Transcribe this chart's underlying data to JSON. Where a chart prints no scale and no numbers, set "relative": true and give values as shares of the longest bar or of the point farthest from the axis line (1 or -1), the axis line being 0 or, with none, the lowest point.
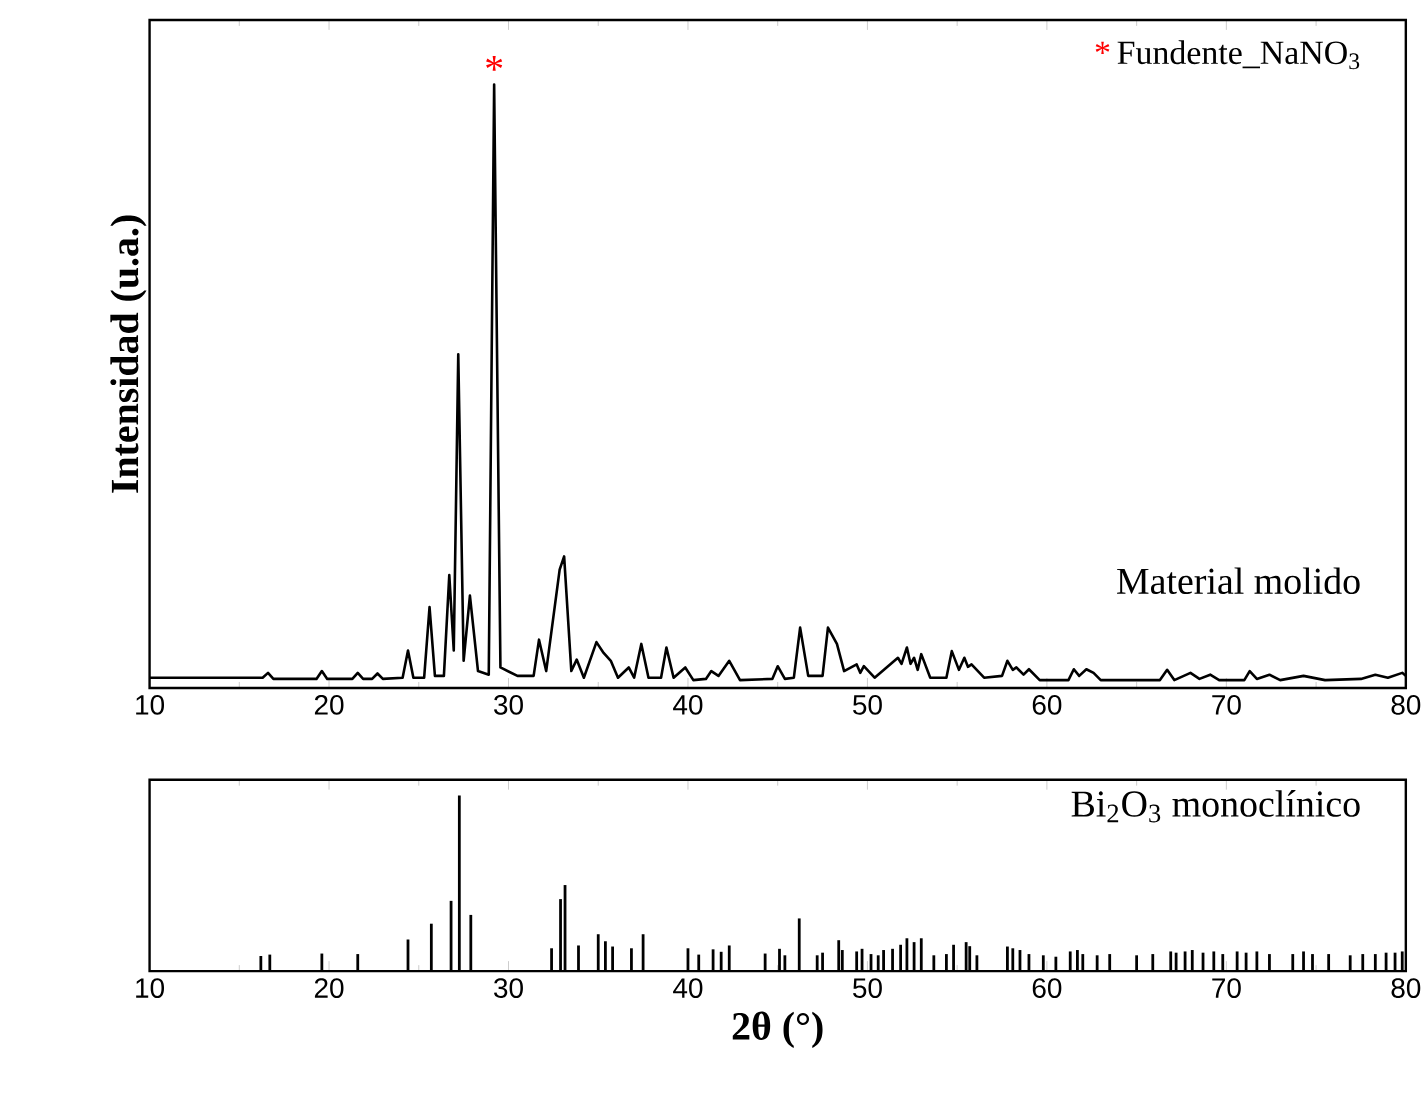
{
  "chart_data": [
    {
      "type": "line",
      "ylabel": "Intensidad (u.a.)",
      "relative": true,
      "xlim": [
        10,
        80
      ],
      "xticks": [
        10,
        20,
        30,
        40,
        50,
        60,
        70,
        80
      ],
      "tick_labels": "x",
      "annotations": [
        {
          "text": "*",
          "x": 29.2,
          "y": 1.0
        },
        "*",
        "Fundente_NaNO$_{3}$"
      ],
      "series": [
        {
          "name": "Material molido",
          "color": "#000000",
          "x": [
            10,
            16.3,
            16.6,
            16.9,
            19.3,
            19.6,
            19.9,
            21.3,
            21.6,
            21.9,
            22.4,
            22.7,
            23.0,
            24.1,
            24.4,
            24.7,
            25.3,
            25.6,
            25.9,
            26.4,
            26.7,
            26.95,
            27.2,
            27.5,
            27.85,
            28.3,
            28.9,
            29.2,
            29.55,
            30.5,
            31.4,
            31.7,
            32.1,
            32.85,
            33.1,
            33.5,
            33.8,
            34.2,
            34.9,
            35.3,
            35.7,
            36.1,
            36.7,
            37.0,
            37.4,
            37.8,
            38.5,
            38.8,
            39.2,
            39.85,
            40.3,
            41.0,
            41.3,
            41.7,
            42.3,
            42.9,
            44.7,
            45.0,
            45.4,
            45.9,
            46.25,
            46.7,
            47.5,
            47.8,
            48.3,
            48.7,
            49.4,
            49.6,
            49.8,
            50.4,
            51.7,
            51.9,
            52.2,
            52.4,
            52.6,
            52.8,
            53.0,
            53.5,
            54.4,
            54.7,
            55.1,
            55.4,
            55.6,
            55.8,
            56.5,
            57.5,
            57.8,
            58.1,
            58.3,
            58.7,
            59.0,
            59.6,
            61.2,
            61.5,
            61.8,
            62.2,
            62.6,
            63.0,
            66.3,
            66.7,
            67.1,
            68.0,
            68.5,
            69.1,
            69.6,
            71.0,
            71.3,
            71.7,
            72.4,
            73.0,
            74.3,
            75.5,
            77.5,
            78.3,
            79.0,
            79.8,
            80
          ],
          "values": [
            0.017,
            0.017,
            0.025,
            0.015,
            0.015,
            0.028,
            0.015,
            0.015,
            0.025,
            0.015,
            0.015,
            0.024,
            0.015,
            0.017,
            0.062,
            0.017,
            0.017,
            0.134,
            0.02,
            0.02,
            0.187,
            0.062,
            0.553,
            0.045,
            0.153,
            0.028,
            0.022,
            1.0,
            0.034,
            0.02,
            0.02,
            0.08,
            0.028,
            0.196,
            0.218,
            0.028,
            0.047,
            0.017,
            0.076,
            0.058,
            0.045,
            0.017,
            0.034,
            0.017,
            0.073,
            0.017,
            0.017,
            0.067,
            0.017,
            0.034,
            0.013,
            0.015,
            0.028,
            0.02,
            0.045,
            0.013,
            0.015,
            0.036,
            0.015,
            0.017,
            0.1,
            0.02,
            0.02,
            0.1,
            0.073,
            0.028,
            0.039,
            0.025,
            0.036,
            0.017,
            0.05,
            0.04,
            0.067,
            0.04,
            0.05,
            0.03,
            0.056,
            0.017,
            0.017,
            0.061,
            0.03,
            0.05,
            0.035,
            0.039,
            0.017,
            0.02,
            0.045,
            0.03,
            0.034,
            0.022,
            0.031,
            0.013,
            0.013,
            0.031,
            0.02,
            0.031,
            0.025,
            0.013,
            0.013,
            0.03,
            0.013,
            0.025,
            0.015,
            0.022,
            0.013,
            0.013,
            0.028,
            0.015,
            0.022,
            0.013,
            0.02,
            0.013,
            0.015,
            0.022,
            0.017,
            0.025,
            0.02
          ]
        }
      ]
    },
    {
      "type": "bar",
      "xlabel": "2θ  (°)",
      "relative": true,
      "xlim": [
        10,
        80
      ],
      "xticks": [
        10,
        20,
        30,
        40,
        50,
        60,
        70,
        80
      ],
      "tick_labels": "x",
      "series": [
        {
          "name": "Bi$_{2}$O$_{3}$ monoclínico",
          "color": "#000000",
          "x": [
            16.2,
            16.7,
            19.6,
            21.6,
            24.4,
            25.7,
            26.8,
            27.26,
            27.9,
            32.4,
            32.9,
            33.15,
            33.9,
            35.0,
            35.4,
            35.8,
            36.85,
            37.5,
            40.0,
            40.6,
            41.4,
            41.85,
            42.3,
            44.3,
            45.1,
            45.4,
            46.2,
            47.2,
            47.5,
            48.4,
            48.6,
            49.4,
            49.7,
            50.2,
            50.6,
            50.9,
            51.4,
            51.85,
            52.2,
            52.6,
            53.0,
            53.7,
            54.4,
            54.8,
            55.5,
            55.7,
            56.1,
            57.8,
            58.1,
            58.5,
            59.0,
            59.8,
            60.5,
            61.3,
            61.7,
            62.0,
            62.8,
            63.5,
            65.0,
            65.9,
            66.9,
            67.2,
            67.7,
            68.1,
            68.7,
            69.3,
            69.8,
            70.6,
            71.1,
            71.7,
            72.4,
            73.7,
            74.3,
            74.8,
            75.7,
            76.9,
            77.6,
            78.3,
            78.9,
            79.4,
            79.8
          ],
          "values": [
            0.086,
            0.094,
            0.1,
            0.097,
            0.18,
            0.27,
            0.4,
            1.0,
            0.32,
            0.13,
            0.41,
            0.49,
            0.146,
            0.21,
            0.17,
            0.14,
            0.13,
            0.21,
            0.13,
            0.094,
            0.124,
            0.11,
            0.146,
            0.1,
            0.127,
            0.09,
            0.3,
            0.09,
            0.105,
            0.176,
            0.12,
            0.112,
            0.127,
            0.097,
            0.09,
            0.12,
            0.127,
            0.15,
            0.187,
            0.165,
            0.187,
            0.09,
            0.097,
            0.15,
            0.165,
            0.142,
            0.09,
            0.14,
            0.13,
            0.12,
            0.097,
            0.09,
            0.082,
            0.112,
            0.12,
            0.097,
            0.09,
            0.097,
            0.09,
            0.097,
            0.112,
            0.105,
            0.112,
            0.12,
            0.105,
            0.112,
            0.097,
            0.112,
            0.105,
            0.112,
            0.097,
            0.097,
            0.112,
            0.097,
            0.097,
            0.09,
            0.097,
            0.097,
            0.105,
            0.105,
            0.112
          ]
        }
      ]
    }
  ]
}
